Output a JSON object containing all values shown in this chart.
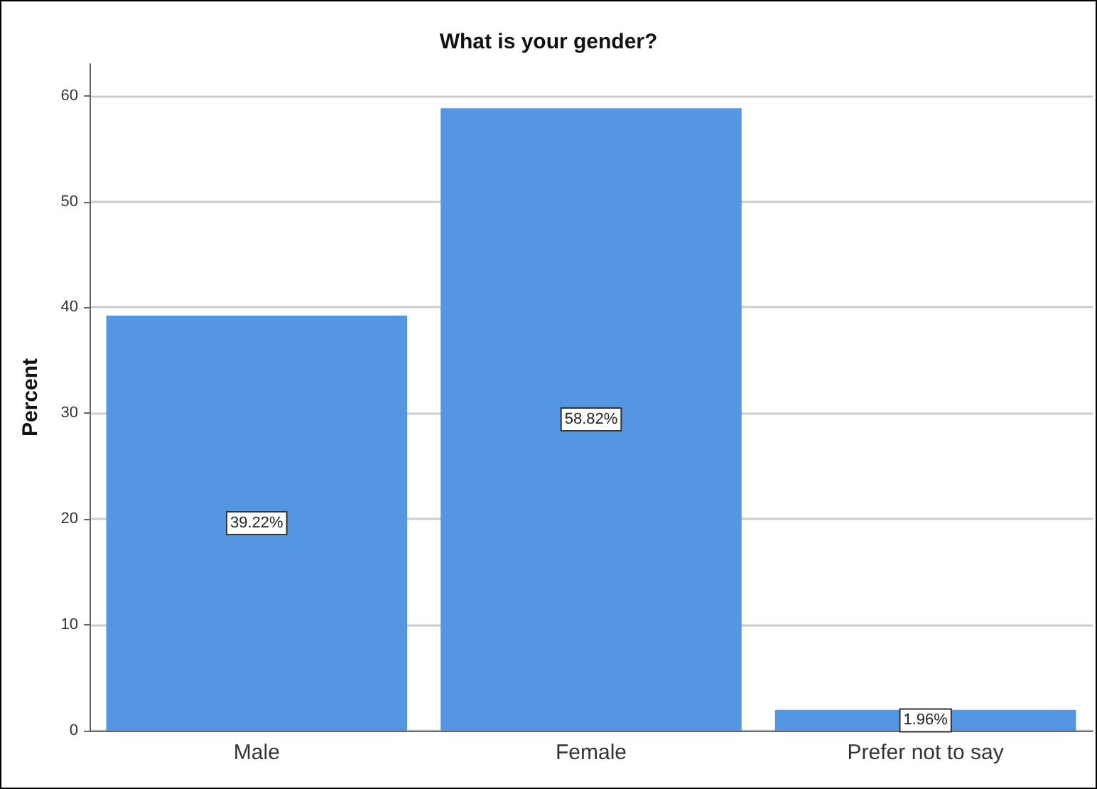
{
  "chart_data": {
    "type": "bar",
    "title": "What is your gender?",
    "ylabel": "Percent",
    "categories": [
      "Male",
      "Female",
      "Prefer not to say"
    ],
    "values": [
      39.22,
      58.82,
      1.96
    ],
    "value_labels": [
      "39.22%",
      "58.82%",
      "1.96%"
    ],
    "color": "#5596e3",
    "ylim": [
      0,
      63
    ],
    "yticks": [
      0,
      10,
      20,
      30,
      40,
      50,
      60
    ],
    "grid": "y"
  }
}
